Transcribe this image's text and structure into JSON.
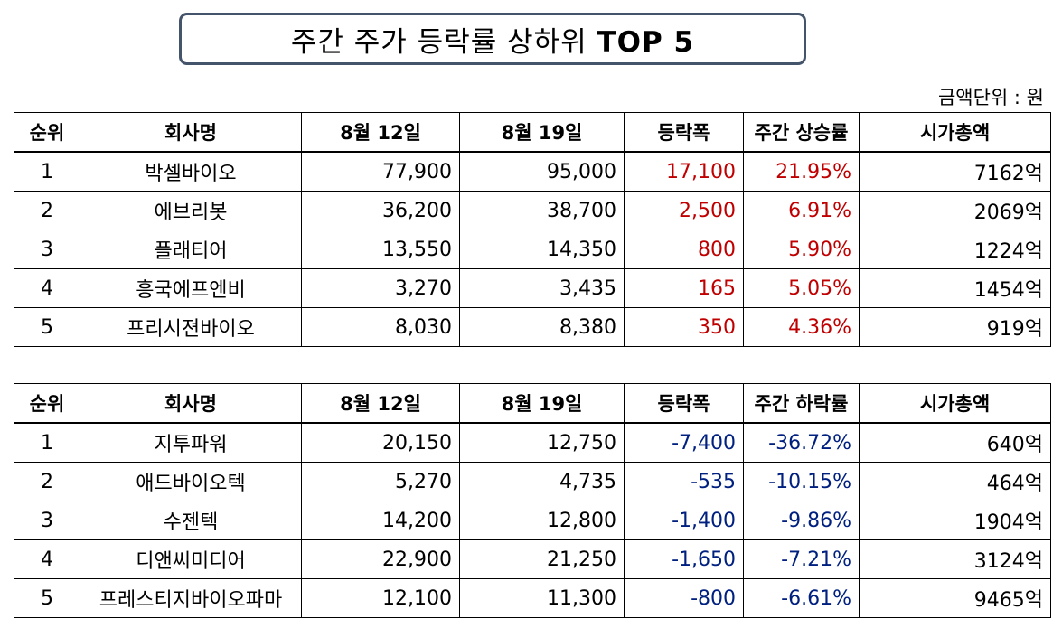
{
  "title": {
    "prefix": "주간 주가 등락률 상하위",
    "suffix": "TOP 5"
  },
  "unit_label": "금액단위 : 원",
  "colors": {
    "up": "#c00000",
    "down": "#002080",
    "title_border": "#44546a"
  },
  "table_up": {
    "headers": [
      "순위",
      "회사명",
      "8월 12일",
      "8월 19일",
      "등락폭",
      "주간 상승률",
      "시가총액"
    ],
    "rows": [
      [
        "1",
        "박셀바이오",
        "77,900",
        "95,000",
        "17,100",
        "21.95%",
        "7162억"
      ],
      [
        "2",
        "에브리봇",
        "36,200",
        "38,700",
        "2,500",
        "6.91%",
        "2069억"
      ],
      [
        "3",
        "플래티어",
        "13,550",
        "14,350",
        "800",
        "5.90%",
        "1224억"
      ],
      [
        "4",
        "흥국에프엔비",
        "3,270",
        "3,435",
        "165",
        "5.05%",
        "1454억"
      ],
      [
        "5",
        "프리시젼바이오",
        "8,030",
        "8,380",
        "350",
        "4.36%",
        "919억"
      ]
    ]
  },
  "table_down": {
    "headers": [
      "순위",
      "회사명",
      "8월 12일",
      "8월 19일",
      "등락폭",
      "주간 하락률",
      "시가총액"
    ],
    "rows": [
      [
        "1",
        "지투파워",
        "20,150",
        "12,750",
        "-7,400",
        "-36.72%",
        "640억"
      ],
      [
        "2",
        "애드바이오텍",
        "5,270",
        "4,735",
        "-535",
        "-10.15%",
        "464억"
      ],
      [
        "3",
        "수젠텍",
        "14,200",
        "12,800",
        "-1,400",
        "-9.86%",
        "1904억"
      ],
      [
        "4",
        "디앤씨미디어",
        "22,900",
        "21,250",
        "-1,650",
        "-7.21%",
        "3124억"
      ],
      [
        "5",
        "프레스티지바이오파마",
        "12,100",
        "11,300",
        "-800",
        "-6.61%",
        "9465억"
      ]
    ]
  }
}
